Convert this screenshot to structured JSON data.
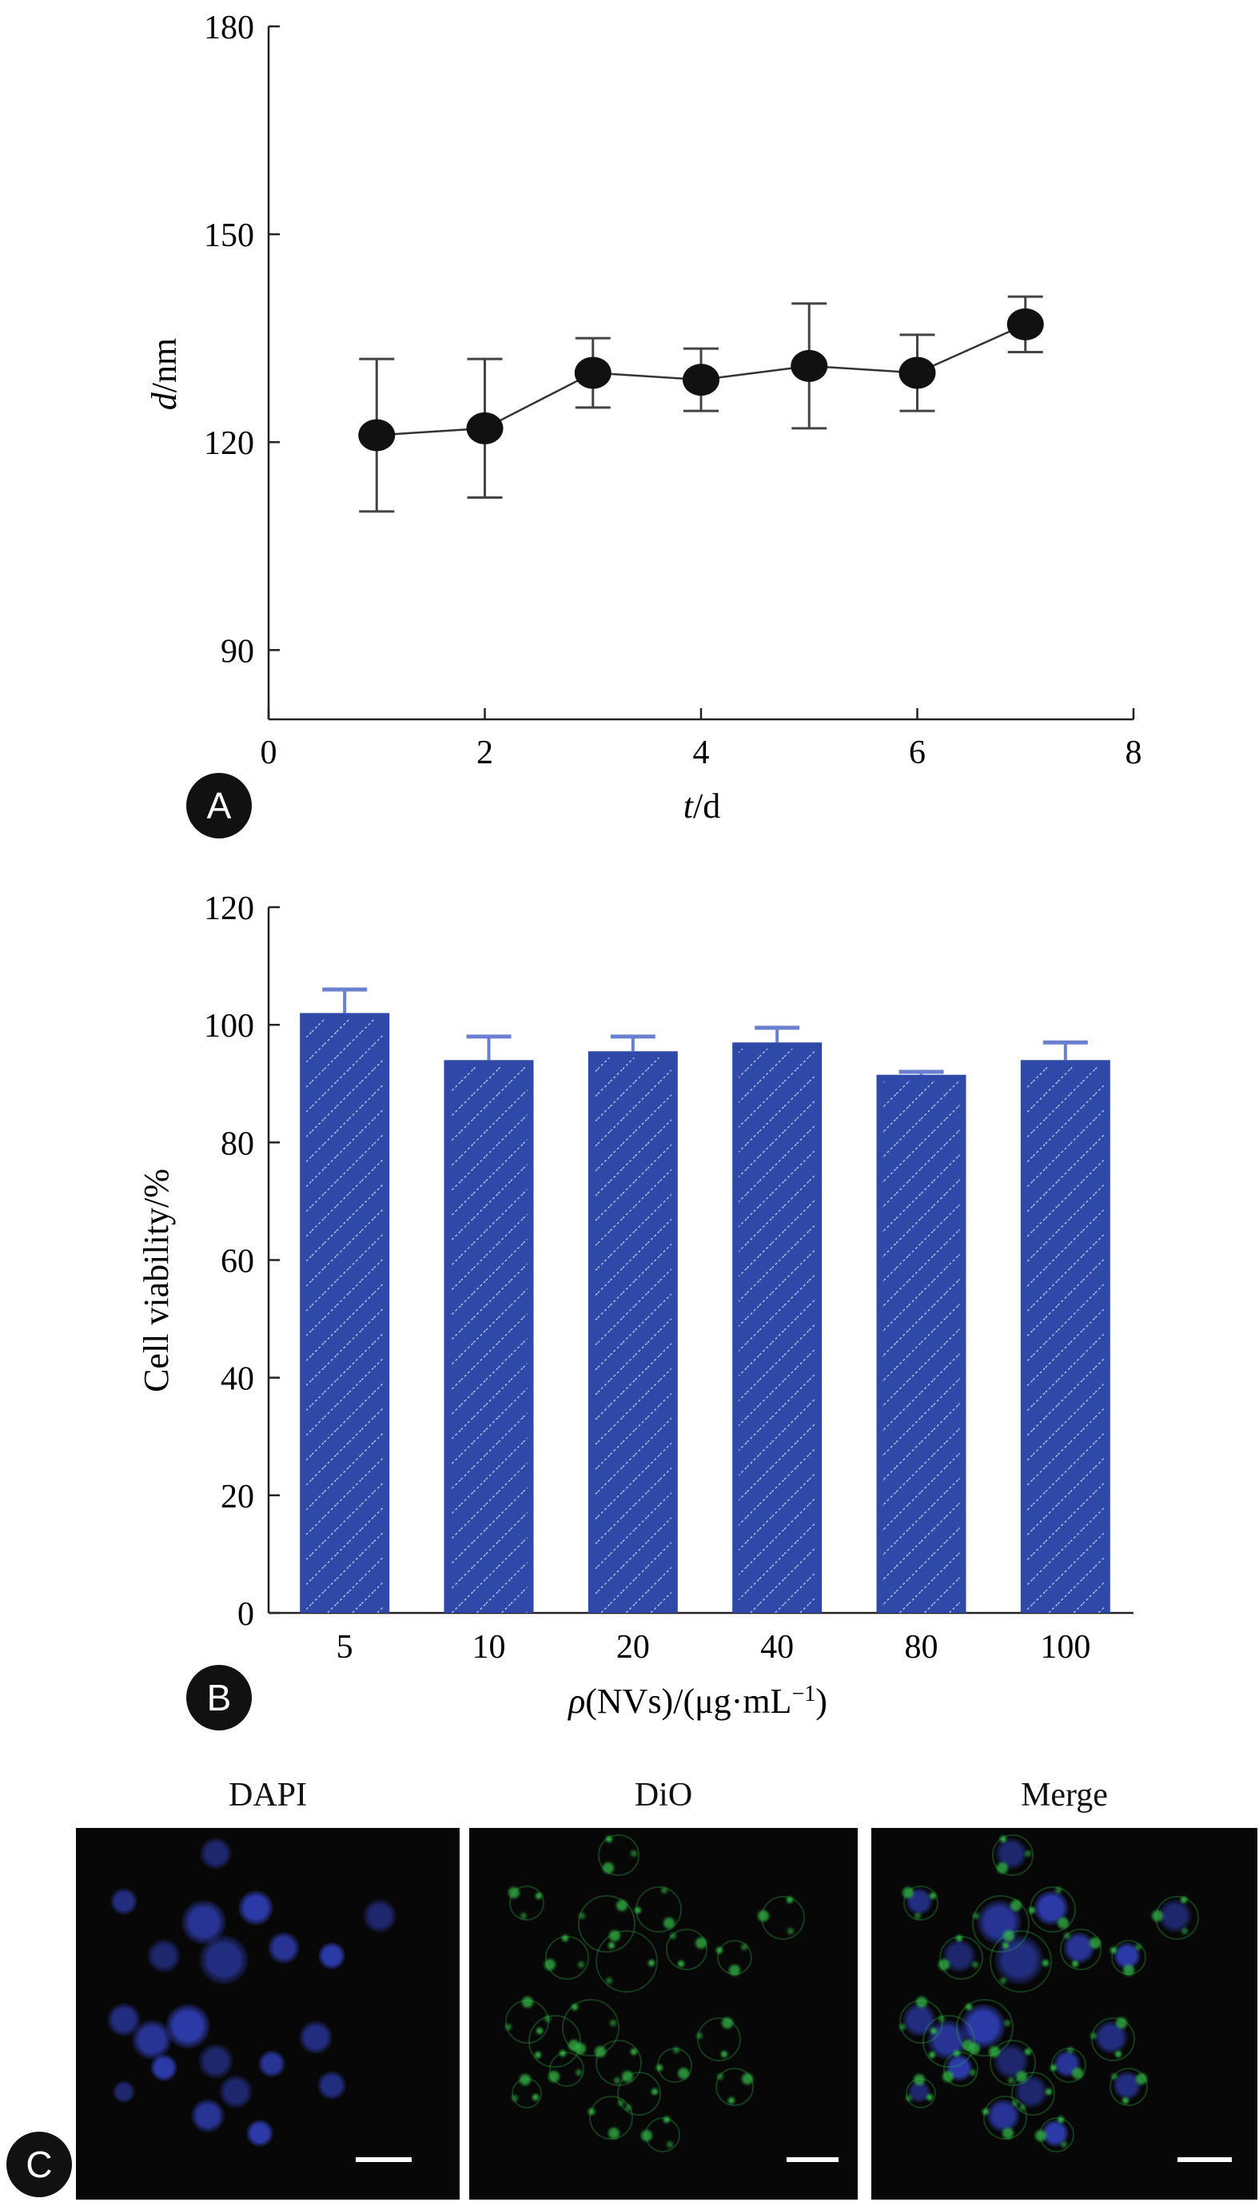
{
  "chart_data": [
    {
      "panel": "A",
      "type": "scatter",
      "xlabel_italic": "t",
      "xlabel_unit": "/d",
      "ylabel_italic": "d",
      "ylabel_unit": "/nm",
      "xlim": [
        0,
        8
      ],
      "ylim": [
        80,
        180
      ],
      "xticks": [
        0,
        2,
        4,
        6,
        8
      ],
      "yticks": [
        90,
        120,
        150,
        180
      ],
      "x": [
        1,
        2,
        3,
        4,
        5,
        6,
        7
      ],
      "y": [
        121,
        122,
        130,
        129,
        131,
        130,
        137
      ],
      "error": [
        11,
        10,
        5,
        4.5,
        9,
        5.5,
        4
      ],
      "connected": true,
      "marker_color": "#111111"
    },
    {
      "panel": "B",
      "type": "bar",
      "ylabel": "Cell viability/%",
      "xlabel_italic": "ρ",
      "xlabel_rest": "(NVs)/(μg·mL",
      "xlabel_sup": "−1",
      "xlabel_end": ")",
      "categories": [
        "5",
        "10",
        "20",
        "40",
        "80",
        "100"
      ],
      "values": [
        102,
        94,
        95.5,
        97,
        91.5,
        94
      ],
      "error": [
        4,
        4,
        2.5,
        2.5,
        0.5,
        3
      ],
      "ylim": [
        0,
        120
      ],
      "yticks": [
        0,
        20,
        40,
        60,
        80,
        100,
        120
      ],
      "bar_color": "#2e49a8",
      "error_color": "#6a7fd0"
    }
  ],
  "panel_c": {
    "panel": "C",
    "images": [
      {
        "title": "DAPI"
      },
      {
        "title": "DiO"
      },
      {
        "title": "Merge"
      }
    ],
    "colors": {
      "dapi": "#2f3fb8",
      "dio": "#36c24a",
      "background": "#070707"
    }
  }
}
